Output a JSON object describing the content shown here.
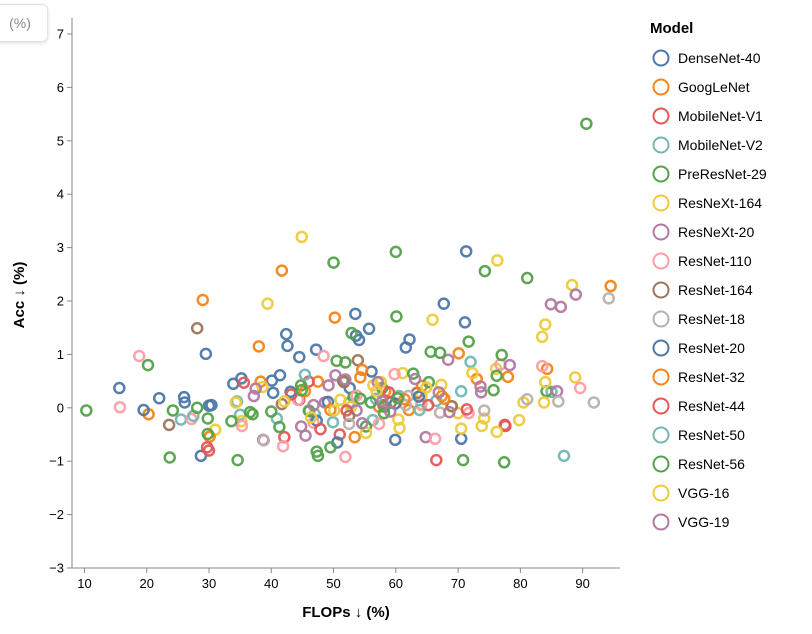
{
  "corner_badge": "(%)",
  "chart_data": {
    "type": "scatter",
    "title": "",
    "xlabel": "FLOPs ↓ (%)",
    "ylabel": "Acc ↓ (%)",
    "xlim": [
      8,
      96
    ],
    "ylim": [
      -3,
      7.3
    ],
    "xticks": [
      10,
      20,
      30,
      40,
      50,
      60,
      70,
      80,
      90
    ],
    "yticks": [
      -3,
      -2,
      -1,
      0,
      1,
      2,
      3,
      4,
      5,
      6,
      7
    ],
    "grid": false,
    "marker": "hollow-circle",
    "legend": {
      "title": "Model",
      "position": "right"
    },
    "series": [
      {
        "name": "DenseNet-40",
        "color": "#4c78a8",
        "points": [
          [
            15.6,
            0.37
          ],
          [
            22,
            0.18
          ],
          [
            26,
            0.2
          ],
          [
            28.7,
            -0.9
          ],
          [
            29.5,
            1.01
          ],
          [
            33.9,
            0.45
          ],
          [
            35.2,
            0.55
          ],
          [
            40.3,
            0.28
          ],
          [
            42.4,
            1.38
          ],
          [
            42.6,
            1.16
          ],
          [
            44.5,
            0.95
          ],
          [
            47.2,
            1.09
          ],
          [
            53.5,
            1.76
          ],
          [
            55.7,
            1.48
          ],
          [
            54.1,
            1.27
          ],
          [
            61.6,
            1.13
          ],
          [
            62.2,
            1.28
          ],
          [
            67.7,
            1.95
          ],
          [
            71.3,
            2.93
          ],
          [
            71.1,
            1.6
          ],
          [
            70.5,
            -0.58
          ],
          [
            59.9,
            -0.6
          ],
          [
            52.6,
            0.37
          ],
          [
            41.4,
            0.61
          ],
          [
            30,
            0.04
          ]
        ]
      },
      {
        "name": "GoogLeNet",
        "color": "#f58518",
        "points": [
          [
            20.3,
            -0.12
          ],
          [
            29,
            2.02
          ],
          [
            38,
            1.15
          ],
          [
            41.7,
            2.57
          ],
          [
            50.2,
            1.69
          ],
          [
            54.3,
            0.57
          ],
          [
            58.3,
            0.31
          ],
          [
            62.1,
            -0.04
          ],
          [
            67.4,
            0.22
          ],
          [
            70.1,
            1.02
          ],
          [
            73,
            0.54
          ],
          [
            78,
            0.58
          ],
          [
            84.3,
            0.73
          ],
          [
            94.5,
            2.28
          ],
          [
            47.5,
            0.49
          ],
          [
            53.4,
            -0.55
          ]
        ]
      },
      {
        "name": "MobileNet-V1",
        "color": "#e45756",
        "points": [
          [
            30,
            -0.8
          ],
          [
            42.1,
            -0.55
          ],
          [
            46,
            0.49
          ],
          [
            51,
            -0.5
          ],
          [
            66.5,
            -0.98
          ],
          [
            77.5,
            -0.32
          ],
          [
            58,
            0.05
          ],
          [
            44.5,
            0.15
          ]
        ]
      },
      {
        "name": "MobileNet-V2",
        "color": "#72b7b2",
        "points": [
          [
            25.5,
            -0.22
          ],
          [
            35,
            -0.13
          ],
          [
            47,
            -0.12
          ],
          [
            52.5,
            0.09
          ],
          [
            60.5,
            0.22
          ],
          [
            66.5,
            0.13
          ],
          [
            72,
            0.86
          ],
          [
            85,
            0.3
          ],
          [
            87,
            -0.9
          ],
          [
            56.3,
            -0.23
          ]
        ]
      },
      {
        "name": "PreResNet-29",
        "color": "#54a24b",
        "points": [
          [
            10.3,
            -0.05
          ],
          [
            20.2,
            0.8
          ],
          [
            23.7,
            -0.93
          ],
          [
            29.8,
            -0.2
          ],
          [
            34.6,
            -0.98
          ],
          [
            37,
            -0.12
          ],
          [
            44.8,
            0.42
          ],
          [
            47.5,
            -0.9
          ],
          [
            50,
            2.72
          ],
          [
            51.5,
            0.51
          ],
          [
            53.2,
            0.2
          ],
          [
            57.8,
            0.37
          ],
          [
            60,
            2.92
          ],
          [
            60.1,
            1.71
          ],
          [
            65.6,
            1.05
          ],
          [
            71.7,
            1.24
          ],
          [
            74.3,
            2.56
          ],
          [
            75.7,
            0.33
          ],
          [
            81.1,
            2.43
          ],
          [
            84.2,
            0.31
          ],
          [
            90.6,
            5.32
          ],
          [
            77.4,
            -1.02
          ]
        ]
      },
      {
        "name": "ResNeXt-164",
        "color": "#eeca3b",
        "points": [
          [
            31,
            -0.41
          ],
          [
            35.2,
            -0.25
          ],
          [
            39.4,
            1.95
          ],
          [
            44.9,
            3.2
          ],
          [
            51.1,
            0.15
          ],
          [
            52.8,
            0.02
          ],
          [
            57.6,
            0.48
          ],
          [
            60.6,
            -0.38
          ],
          [
            64.1,
            0.23
          ],
          [
            65.9,
            1.65
          ],
          [
            68.9,
            0.03
          ],
          [
            72.3,
            0.65
          ],
          [
            76.3,
            2.76
          ],
          [
            80.5,
            0.1
          ],
          [
            83.5,
            1.33
          ],
          [
            84,
            1.56
          ],
          [
            88.3,
            2.3
          ],
          [
            88.8,
            0.57
          ],
          [
            84,
            0.48
          ],
          [
            76.1,
            0.73
          ],
          [
            74.2,
            -0.2
          ],
          [
            70,
            -0.1
          ],
          [
            64.1,
            0.05
          ],
          [
            61.1,
            0.65
          ],
          [
            56.4,
            0.42
          ]
        ]
      },
      {
        "name": "ResNeXt-20",
        "color": "#b279a2",
        "points": [
          [
            37.2,
            0.22
          ],
          [
            38.7,
            -0.6
          ],
          [
            48.6,
            0.1
          ],
          [
            50.3,
            0.61
          ],
          [
            57.1,
            0.48
          ],
          [
            64.8,
            -0.55
          ],
          [
            68.4,
            0.9
          ],
          [
            73.6,
            0.4
          ],
          [
            84.9,
            1.94
          ],
          [
            86.5,
            1.89
          ],
          [
            88.9,
            2.12
          ],
          [
            85.9,
            0.31
          ],
          [
            53.7,
            -0.05
          ],
          [
            44.8,
            -0.35
          ]
        ]
      },
      {
        "name": "ResNet-110",
        "color": "#ff9da6",
        "points": [
          [
            15.7,
            0.01
          ],
          [
            18.8,
            0.97
          ],
          [
            27.2,
            -0.21
          ],
          [
            35.3,
            -0.34
          ],
          [
            41.9,
            -0.72
          ],
          [
            44.3,
            0.15
          ],
          [
            48.4,
            0.97
          ],
          [
            51.9,
            -0.92
          ],
          [
            53.7,
            0.23
          ],
          [
            59.8,
            0.63
          ],
          [
            64.1,
            0.07
          ],
          [
            66.3,
            -0.58
          ],
          [
            71.7,
            -0.1
          ],
          [
            76.8,
            0.81
          ],
          [
            83.5,
            0.78
          ],
          [
            89.6,
            0.37
          ],
          [
            57.3,
            -0.3
          ],
          [
            46.8,
            -0.28
          ]
        ]
      },
      {
        "name": "ResNet-164",
        "color": "#9d755d",
        "points": [
          [
            23.6,
            -0.32
          ],
          [
            28.1,
            1.49
          ],
          [
            41.7,
            0.07
          ],
          [
            51.7,
            0.48
          ],
          [
            52.5,
            -0.15
          ],
          [
            59.2,
            0.1
          ],
          [
            63.4,
            0.28
          ],
          [
            69,
            0.03
          ],
          [
            53.9,
            0.89
          ]
        ]
      },
      {
        "name": "ResNet-18",
        "color": "#bab0ac",
        "points": [
          [
            38.8,
            -0.61
          ],
          [
            46,
            -0.05
          ],
          [
            52.5,
            -0.3
          ],
          [
            62,
            0.22
          ],
          [
            67.1,
            -0.09
          ],
          [
            74.2,
            -0.05
          ],
          [
            86.1,
            0.12
          ],
          [
            91.8,
            0.1
          ],
          [
            94.2,
            2.05
          ],
          [
            81.1,
            0.16
          ],
          [
            61.6,
            0.05
          ]
        ]
      },
      {
        "name": "ResNet-20",
        "color": "#4c78a8",
        "points": [
          [
            19.5,
            -0.04
          ],
          [
            26.1,
            0.1
          ],
          [
            30.4,
            0.05
          ],
          [
            40.1,
            0.51
          ],
          [
            43.1,
            0.3
          ],
          [
            49.1,
            0.11
          ],
          [
            53.6,
            1.35
          ],
          [
            56.1,
            0.68
          ],
          [
            59.9,
            0.08
          ],
          [
            63.7,
            0.21
          ],
          [
            50.6,
            -0.65
          ],
          [
            47.3,
            -0.24
          ]
        ]
      },
      {
        "name": "ResNet-32",
        "color": "#f58518",
        "points": [
          [
            30.1,
            -0.54
          ],
          [
            38.3,
            0.49
          ],
          [
            45.4,
            0.31
          ],
          [
            49.5,
            -0.04
          ],
          [
            54.6,
            0.71
          ],
          [
            61.4,
            0.16
          ],
          [
            67.8,
            0.17
          ],
          [
            64.2,
            0.41
          ],
          [
            57.3,
            0.02
          ]
        ]
      },
      {
        "name": "ResNet-44",
        "color": "#e45756",
        "points": [
          [
            29.7,
            -0.74
          ],
          [
            35.6,
            0.47
          ],
          [
            43.2,
            0.25
          ],
          [
            52.1,
            -0.05
          ],
          [
            58.9,
            0.29
          ],
          [
            65.2,
            0.05
          ],
          [
            71.4,
            -0.03
          ],
          [
            77.6,
            -0.34
          ],
          [
            47.9,
            -0.4
          ]
        ]
      },
      {
        "name": "ResNet-50",
        "color": "#72b7b2",
        "points": [
          [
            27.5,
            -0.15
          ],
          [
            34.5,
            0.12
          ],
          [
            40.9,
            -0.2
          ],
          [
            49.9,
            -0.27
          ],
          [
            56.8,
            0.17
          ],
          [
            63.8,
            -0.04
          ],
          [
            70.5,
            0.31
          ],
          [
            45.4,
            0.62
          ]
        ]
      },
      {
        "name": "ResNet-56",
        "color": "#54a24b",
        "points": [
          [
            24.2,
            -0.05
          ],
          [
            28.1,
            0
          ],
          [
            29.8,
            -0.49
          ],
          [
            33.6,
            -0.25
          ],
          [
            36.6,
            -0.08
          ],
          [
            41.3,
            -0.36
          ],
          [
            44.9,
            0.33
          ],
          [
            47.3,
            -0.82
          ],
          [
            49.5,
            -0.74
          ],
          [
            50.5,
            0.88
          ],
          [
            52.9,
            1.4
          ],
          [
            55.2,
            -0.35
          ],
          [
            58.2,
            0.02
          ],
          [
            60.3,
            0.18
          ],
          [
            62.8,
            0.64
          ],
          [
            65.3,
            0.48
          ],
          [
            67.1,
            1.03
          ],
          [
            70.8,
            -0.98
          ],
          [
            76.2,
            0.6
          ],
          [
            77,
            0.99
          ],
          [
            51.9,
            0.85
          ],
          [
            46.1,
            -0.06
          ],
          [
            54.3,
            0.17
          ],
          [
            58.1,
            -0.1
          ],
          [
            40,
            -0.07
          ],
          [
            56,
            0.1
          ]
        ]
      },
      {
        "name": "VGG-16",
        "color": "#eeca3b",
        "points": [
          [
            34.3,
            0.1
          ],
          [
            38.6,
            0.39
          ],
          [
            42.1,
            0.12
          ],
          [
            46.4,
            -0.18
          ],
          [
            50.1,
            -0.05
          ],
          [
            55.2,
            -0.47
          ],
          [
            60.4,
            -0.22
          ],
          [
            64.9,
            0.38
          ],
          [
            67.3,
            0.43
          ],
          [
            70.5,
            -0.39
          ],
          [
            73.8,
            -0.34
          ],
          [
            76.2,
            -0.45
          ],
          [
            79.8,
            -0.23
          ],
          [
            83.8,
            0.1
          ],
          [
            56.9,
            0.31
          ]
        ]
      },
      {
        "name": "VGG-19",
        "color": "#b279a2",
        "points": [
          [
            37.5,
            0.36
          ],
          [
            45.5,
            -0.52
          ],
          [
            49.2,
            0.42
          ],
          [
            51.9,
            0.53
          ],
          [
            54.6,
            -0.29
          ],
          [
            59.1,
            -0.07
          ],
          [
            63.1,
            0.54
          ],
          [
            66.9,
            0.29
          ],
          [
            73.7,
            0.29
          ],
          [
            78.3,
            0.8
          ],
          [
            68.6,
            -0.08
          ],
          [
            57.8,
            0.12
          ],
          [
            46.8,
            0.05
          ]
        ]
      }
    ]
  }
}
